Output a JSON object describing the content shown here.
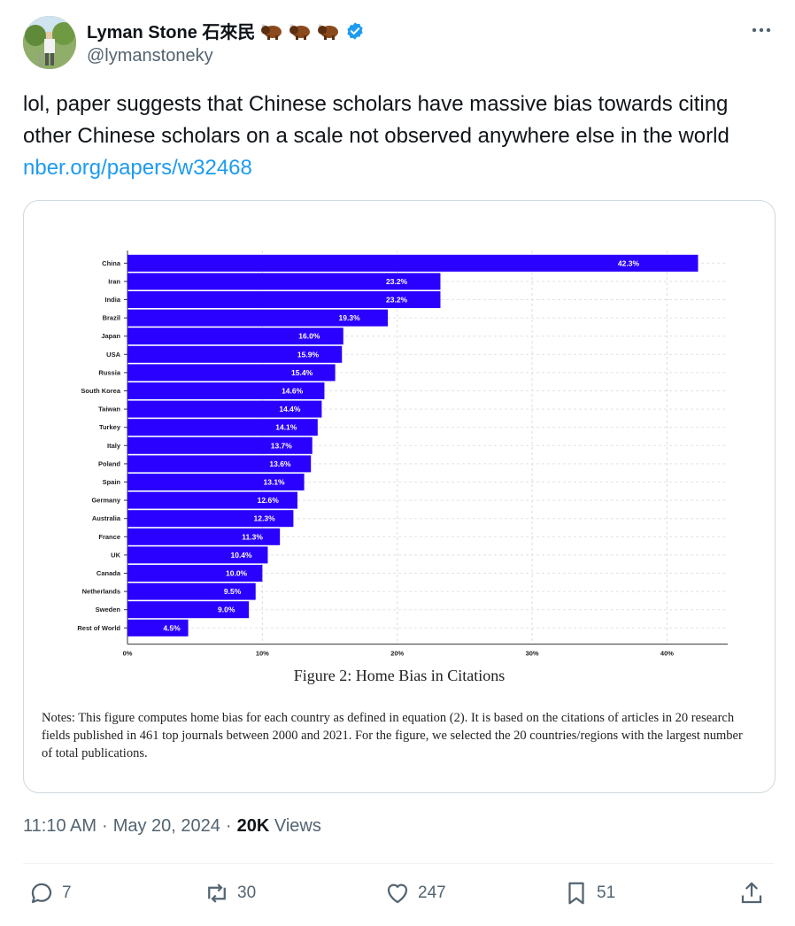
{
  "author": {
    "name": "Lyman Stone 石來民",
    "handle": "@lymanstoneky",
    "emoji_count": 3,
    "verified": true
  },
  "tweet": {
    "text": "lol, paper suggests that Chinese scholars have massive bias towards citing other Chinese scholars on a scale not observed anywhere else in the world ",
    "link": "nber.org/papers/w32468"
  },
  "figure": {
    "caption": "Figure 2: Home Bias in Citations",
    "notes": "Notes: This figure computes home bias for each country as defined in equation (2). It is based on the citations of articles in 20 research fields published in 461 top journals between 2000 and 2021. For the figure, we selected the 20 countries/regions with the largest number of total publications."
  },
  "chart_data": {
    "type": "bar",
    "orientation": "horizontal",
    "bar_color": "#2a00ff",
    "categories": [
      "China",
      "Iran",
      "India",
      "Brazil",
      "Japan",
      "USA",
      "Russia",
      "South Korea",
      "Taiwan",
      "Turkey",
      "Italy",
      "Poland",
      "Spain",
      "Germany",
      "Australia",
      "France",
      "UK",
      "Canada",
      "Netherlands",
      "Sweden",
      "Rest of World"
    ],
    "values": [
      42.3,
      23.2,
      23.2,
      19.3,
      16.0,
      15.9,
      15.4,
      14.6,
      14.4,
      14.1,
      13.7,
      13.6,
      13.1,
      12.6,
      12.3,
      11.3,
      10.4,
      10.0,
      9.5,
      9.0,
      4.5
    ],
    "labels": [
      "42.3%",
      "23.2%",
      "23.2%",
      "19.3%",
      "16.0%",
      "15.9%",
      "15.4%",
      "14.6%",
      "14.4%",
      "14.1%",
      "13.7%",
      "13.6%",
      "13.1%",
      "12.6%",
      "12.3%",
      "11.3%",
      "10.4%",
      "10.0%",
      "9.5%",
      "9.0%",
      "4.5%"
    ],
    "xticks": [
      "0%",
      "10%",
      "20%",
      "30%",
      "40%"
    ],
    "xlim": [
      0,
      44.5
    ],
    "grid": true
  },
  "meta": {
    "time": "11:10 AM",
    "date": "May 20, 2024",
    "views_count": "20K",
    "views_label": "Views"
  },
  "actions": {
    "replies": "7",
    "reposts": "30",
    "likes": "247",
    "bookmarks": "51"
  },
  "colors": {
    "link": "#1d9bf0",
    "verified": "#1d9bf0",
    "muted": "#536471"
  }
}
